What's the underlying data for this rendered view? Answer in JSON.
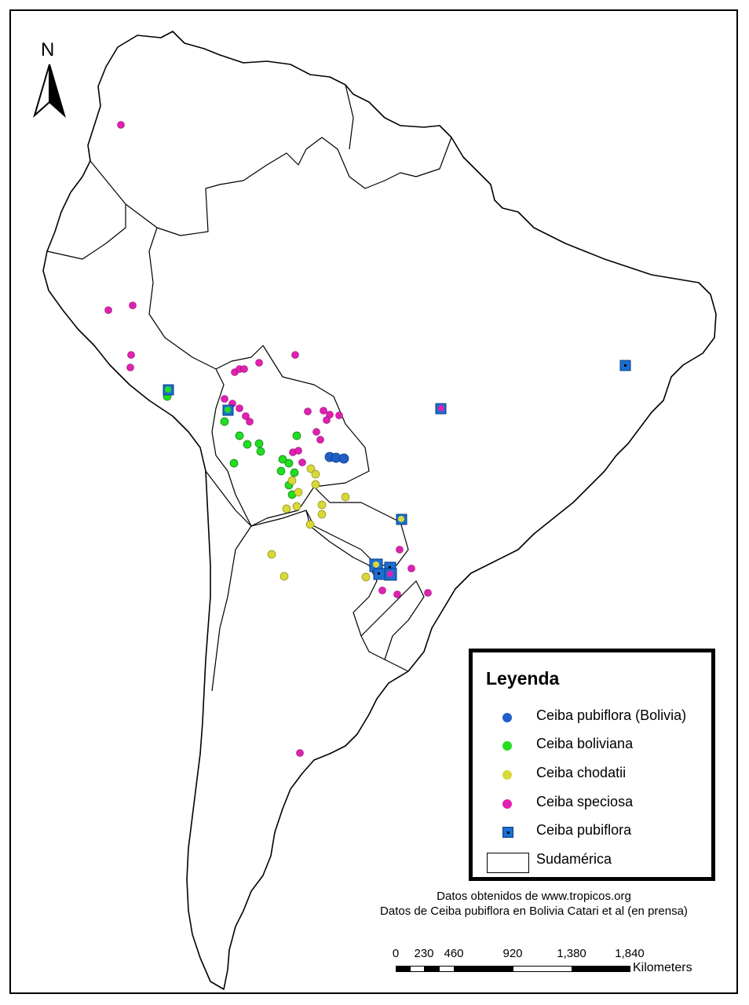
{
  "north_arrow": {
    "letter": "N",
    "icon": "north-arrow-icon"
  },
  "legend": {
    "title": "Leyenda",
    "items": [
      {
        "label": "Ceiba pubiflora (Bolivia)",
        "symbol": "circle",
        "color": "#1f5fc7"
      },
      {
        "label": "Ceiba boliviana",
        "symbol": "circle",
        "color": "#22dd22"
      },
      {
        "label": "Ceiba chodatii",
        "symbol": "circle",
        "color": "#d8d83a"
      },
      {
        "label": "Ceiba speciosa",
        "symbol": "circle",
        "color": "#e020b0"
      },
      {
        "label": "Ceiba pubiflora",
        "symbol": "square",
        "color": "#1a6fd0"
      },
      {
        "label": "Sudamérica",
        "symbol": "polygon",
        "color": "#000000"
      }
    ]
  },
  "credits": {
    "line1": "Datos obtenidos de www.tropicos.org",
    "line2": "Datos de Ceiba pubiflora en Bolivia Catari et al (en prensa)"
  },
  "scale_bar": {
    "labels": [
      "0",
      "230",
      "460",
      "920",
      "1,380",
      "1,840"
    ],
    "unit": "Kilometers"
  }
}
